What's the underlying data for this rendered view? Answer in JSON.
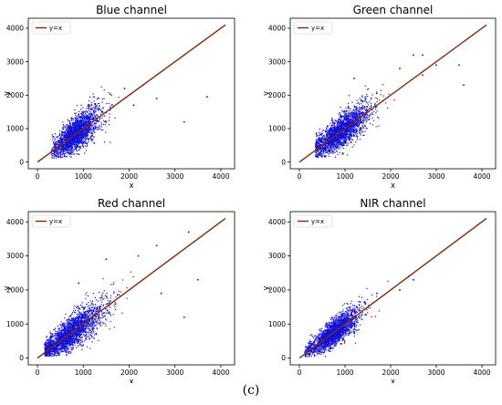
{
  "figure": {
    "caption": "(c)"
  },
  "colors": {
    "scatter": "#1010dd",
    "fit_line": "#8b2500",
    "axes": "#000000"
  },
  "chart_data": [
    {
      "type": "scatter",
      "title": "Blue channel",
      "xlabel": "x",
      "ylabel": "y",
      "xlim": [
        -200,
        4300
      ],
      "ylim": [
        -200,
        4300
      ],
      "xticks": [
        0,
        1000,
        2000,
        3000,
        4000
      ],
      "yticks": [
        0,
        1000,
        2000,
        3000,
        4000
      ],
      "legend": {
        "entries": [
          "y=x"
        ],
        "placement": "top-left"
      },
      "grid": false,
      "reference_line": {
        "name": "y=x",
        "from": [
          0,
          0
        ],
        "to": [
          4100,
          4100
        ]
      },
      "cluster": {
        "x_center": 850,
        "x_spread": 300,
        "y_offset": 0,
        "y_spread": 260,
        "x_min": 300,
        "x_max": 2300,
        "count": 2200
      },
      "outliers": [
        {
          "x": 2600,
          "y": 1900
        },
        {
          "x": 3200,
          "y": 1200
        },
        {
          "x": 3700,
          "y": 1950
        },
        {
          "x": 2300,
          "y": 2300
        },
        {
          "x": 1900,
          "y": 2200
        },
        {
          "x": 2100,
          "y": 1700
        }
      ]
    },
    {
      "type": "scatter",
      "title": "Green channel",
      "xlabel": "x",
      "ylabel": "y",
      "xlim": [
        -200,
        4300
      ],
      "ylim": [
        -200,
        4300
      ],
      "xticks": [
        0,
        1000,
        2000,
        3000,
        4000
      ],
      "yticks": [
        0,
        1000,
        2000,
        3000,
        4000
      ],
      "legend": {
        "entries": [
          "y=x"
        ],
        "placement": "top-left"
      },
      "grid": false,
      "reference_line": {
        "name": "y=x",
        "from": [
          0,
          0
        ],
        "to": [
          4100,
          4100
        ]
      },
      "cluster": {
        "x_center": 900,
        "x_spread": 380,
        "y_offset": 0,
        "y_spread": 240,
        "x_min": 350,
        "x_max": 2700,
        "count": 2200
      },
      "outliers": [
        {
          "x": 3000,
          "y": 2900
        },
        {
          "x": 3500,
          "y": 2900
        },
        {
          "x": 2500,
          "y": 3200
        },
        {
          "x": 2700,
          "y": 3200
        },
        {
          "x": 1200,
          "y": 2500
        },
        {
          "x": 3600,
          "y": 2300
        },
        {
          "x": 2200,
          "y": 2800
        },
        {
          "x": 2700,
          "y": 2600
        }
      ]
    },
    {
      "type": "scatter",
      "title": "Red channel",
      "xlabel": "x",
      "ylabel": "y",
      "xlim": [
        -200,
        4300
      ],
      "ylim": [
        -200,
        4300
      ],
      "xticks": [
        0,
        1000,
        2000,
        3000,
        4000
      ],
      "yticks": [
        0,
        1000,
        2000,
        3000,
        4000
      ],
      "legend": {
        "entries": [
          "y=x"
        ],
        "placement": "top-left"
      },
      "grid": false,
      "reference_line": {
        "name": "y=x",
        "from": [
          0,
          0
        ],
        "to": [
          4100,
          4100
        ]
      },
      "cluster": {
        "x_center": 700,
        "x_spread": 450,
        "y_offset": 0,
        "y_spread": 260,
        "x_min": 150,
        "x_max": 3000,
        "count": 2400
      },
      "outliers": [
        {
          "x": 3300,
          "y": 3700
        },
        {
          "x": 2600,
          "y": 3300
        },
        {
          "x": 3500,
          "y": 2300
        },
        {
          "x": 1500,
          "y": 2900
        },
        {
          "x": 900,
          "y": 2200
        },
        {
          "x": 2700,
          "y": 1900
        },
        {
          "x": 3200,
          "y": 1200
        },
        {
          "x": 2200,
          "y": 3000
        }
      ]
    },
    {
      "type": "scatter",
      "title": "NIR channel",
      "xlabel": "x",
      "ylabel": "y",
      "xlim": [
        -200,
        4300
      ],
      "ylim": [
        -200,
        4300
      ],
      "xticks": [
        0,
        1000,
        2000,
        3000,
        4000
      ],
      "yticks": [
        0,
        1000,
        2000,
        3000,
        4000
      ],
      "legend": {
        "entries": [
          "y=x"
        ],
        "placement": "top-left"
      },
      "grid": false,
      "reference_line": {
        "name": "y=x",
        "from": [
          0,
          0
        ],
        "to": [
          4100,
          4100
        ]
      },
      "cluster": {
        "x_center": 750,
        "x_spread": 320,
        "y_offset": 0,
        "y_spread": 200,
        "x_min": 100,
        "x_max": 2500,
        "count": 2200
      },
      "outliers": [
        {
          "x": 2400,
          "y": 2400
        },
        {
          "x": 2200,
          "y": 2000
        },
        {
          "x": 2500,
          "y": 2300
        },
        {
          "x": 1700,
          "y": 1900
        }
      ]
    }
  ]
}
